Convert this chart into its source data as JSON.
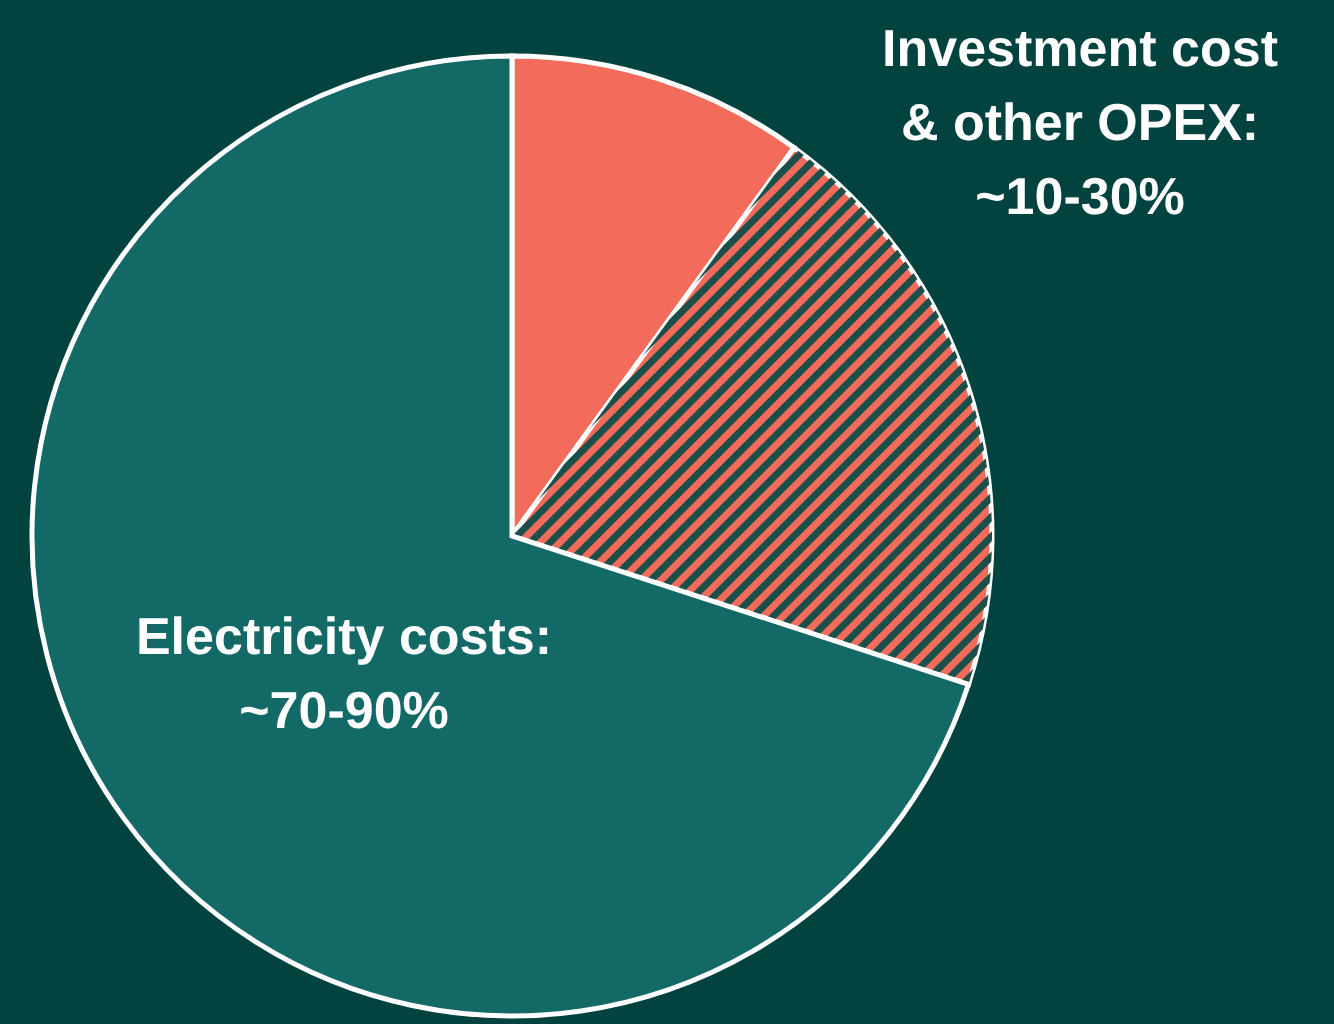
{
  "chart_data": {
    "type": "pie",
    "categories": [
      null,
      null,
      null
    ],
    "values": [
      10,
      20,
      70
    ],
    "colors": [
      "#f26b5b",
      "#f26b5b",
      "#136966"
    ],
    "annotations": [
      "Investment cost & other OPEX: ~10-30%",
      "Electricity costs: ~70-90%"
    ]
  }
}
